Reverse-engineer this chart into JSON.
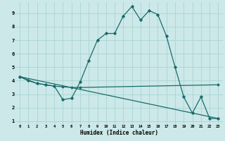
{
  "xlabel": "Humidex (Indice chaleur)",
  "bg_color": "#cce8e8",
  "line_color": "#1a6b6b",
  "grid_color": "#aad4d4",
  "xlim": [
    -0.5,
    23.5
  ],
  "ylim": [
    0.8,
    9.8
  ],
  "yticks": [
    1,
    2,
    3,
    4,
    5,
    6,
    7,
    8,
    9
  ],
  "xticks": [
    0,
    1,
    2,
    3,
    4,
    5,
    6,
    7,
    8,
    9,
    10,
    11,
    12,
    13,
    14,
    15,
    16,
    17,
    18,
    19,
    20,
    21,
    22,
    23
  ],
  "line1_x": [
    0,
    1,
    2,
    3,
    4,
    5,
    6,
    7,
    8,
    9,
    10,
    11,
    12,
    13,
    14,
    15,
    16,
    17,
    18,
    19,
    20,
    21,
    22,
    23
  ],
  "line1_y": [
    4.3,
    4.0,
    3.8,
    3.7,
    3.6,
    2.6,
    2.7,
    3.9,
    5.5,
    7.0,
    7.5,
    7.5,
    8.8,
    9.5,
    8.5,
    9.2,
    8.9,
    7.3,
    5.0,
    2.8,
    1.6,
    2.8,
    1.2,
    1.2
  ],
  "line2_x": [
    0,
    2,
    3,
    4,
    5,
    6,
    7,
    23
  ],
  "line2_y": [
    4.3,
    3.8,
    3.7,
    3.6,
    3.55,
    3.5,
    3.5,
    3.7
  ],
  "line3_x": [
    0,
    23
  ],
  "line3_y": [
    4.3,
    1.2
  ]
}
